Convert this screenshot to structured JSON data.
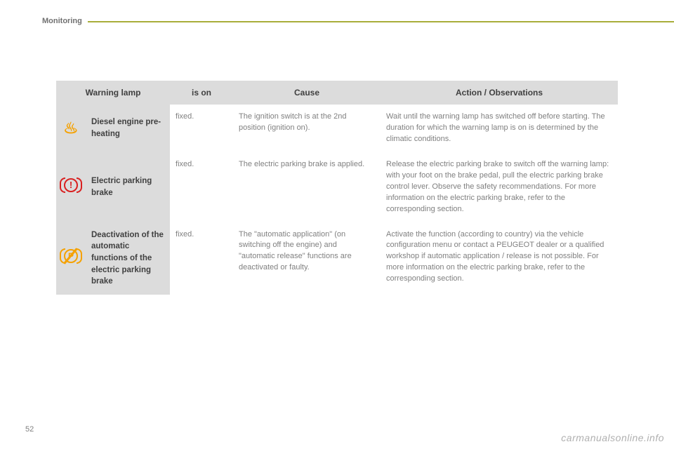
{
  "header": {
    "section_label": "Monitoring"
  },
  "page_number": "52",
  "footer_watermark": "carmanualsonline.info",
  "table": {
    "columns": [
      "Warning lamp",
      "is on",
      "Cause",
      "Action / Observations"
    ],
    "header_bg": "#dcdcdc",
    "header_text_color": "#404040",
    "body_text_color": "#808080",
    "font_size_header": 12,
    "font_size_body": 11,
    "accent_rule_color": "#a8ad3a",
    "rows": [
      {
        "icon": "preheat",
        "icon_color": "#f5a100",
        "name": "Diesel engine pre-heating",
        "is_on": "fixed.",
        "cause": "The ignition switch is at the 2nd position (ignition on).",
        "action": "Wait until the warning lamp has switched off before starting. The duration for which the warning lamp is on is determined by the climatic conditions."
      },
      {
        "icon": "brake",
        "icon_color": "#d92020",
        "name": "Electric parking brake",
        "is_on": "fixed.",
        "cause": "The electric parking brake is applied.",
        "action": "Release the electric parking brake to switch off the warning lamp: with your foot on the brake pedal, pull the electric parking brake control lever. Observe the safety recommendations. For more information on the electric parking brake, refer to the corresponding section."
      },
      {
        "icon": "deact",
        "icon_color": "#f5a100",
        "name": "Deactivation of the automatic functions of the electric parking brake",
        "is_on": "fixed.",
        "cause": "The \"automatic application\" (on switching off the engine) and \"automatic release\" functions are deactivated or faulty.",
        "action": "Activate the function (according to country) via the vehicle configuration menu or contact a PEUGEOT dealer or a qualified workshop if automatic application / release is not possible. For more information on the electric parking brake, refer to the corresponding section."
      }
    ]
  }
}
